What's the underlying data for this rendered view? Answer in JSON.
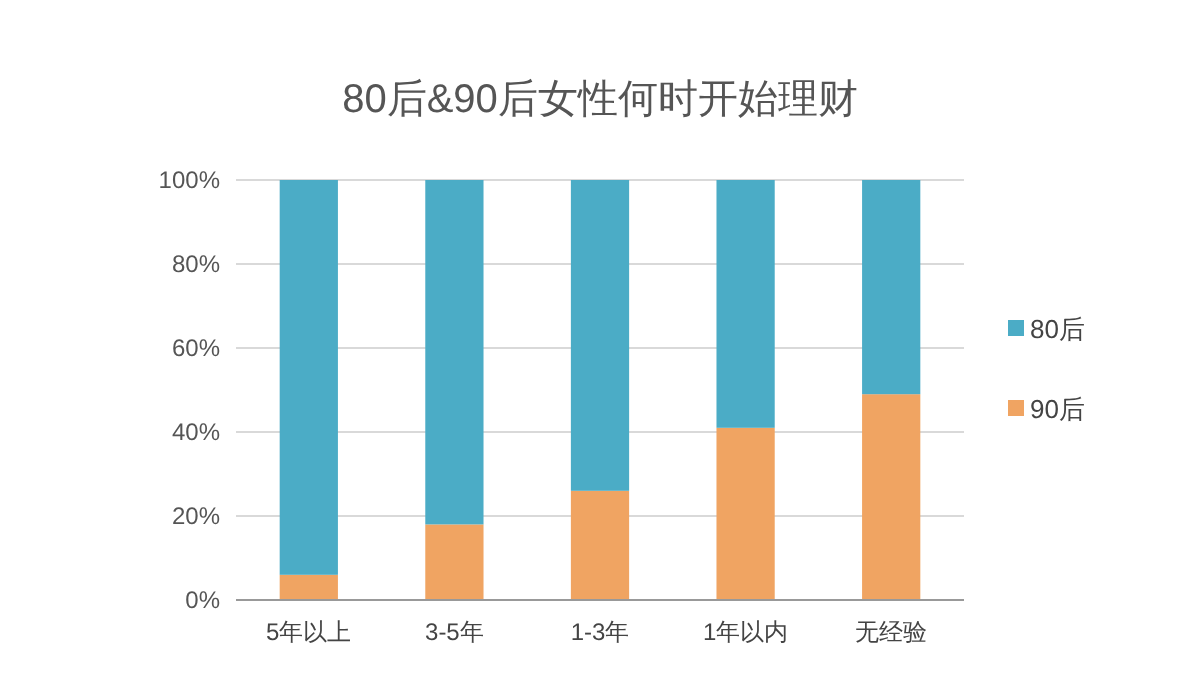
{
  "chart_data": {
    "type": "bar",
    "title": "80后&90后女性何时开始理财",
    "stacked": true,
    "categories": [
      "5年以上",
      "3-5年",
      "1-3年",
      "1年以内",
      "无经验"
    ],
    "series": [
      {
        "name": "90后",
        "color": "#f0a462",
        "values": [
          6,
          18,
          26,
          41,
          49
        ]
      },
      {
        "name": "80后",
        "color": "#4bacc6",
        "values": [
          94,
          82,
          74,
          59,
          51
        ]
      }
    ],
    "ylim": [
      0,
      100
    ],
    "yticks": [
      {
        "value": 0,
        "label": "0%"
      },
      {
        "value": 20,
        "label": "20%"
      },
      {
        "value": 40,
        "label": "40%"
      },
      {
        "value": 60,
        "label": "60%"
      },
      {
        "value": 80,
        "label": "80%"
      },
      {
        "value": 100,
        "label": "100%"
      }
    ],
    "grid": "y",
    "legend": "right"
  }
}
